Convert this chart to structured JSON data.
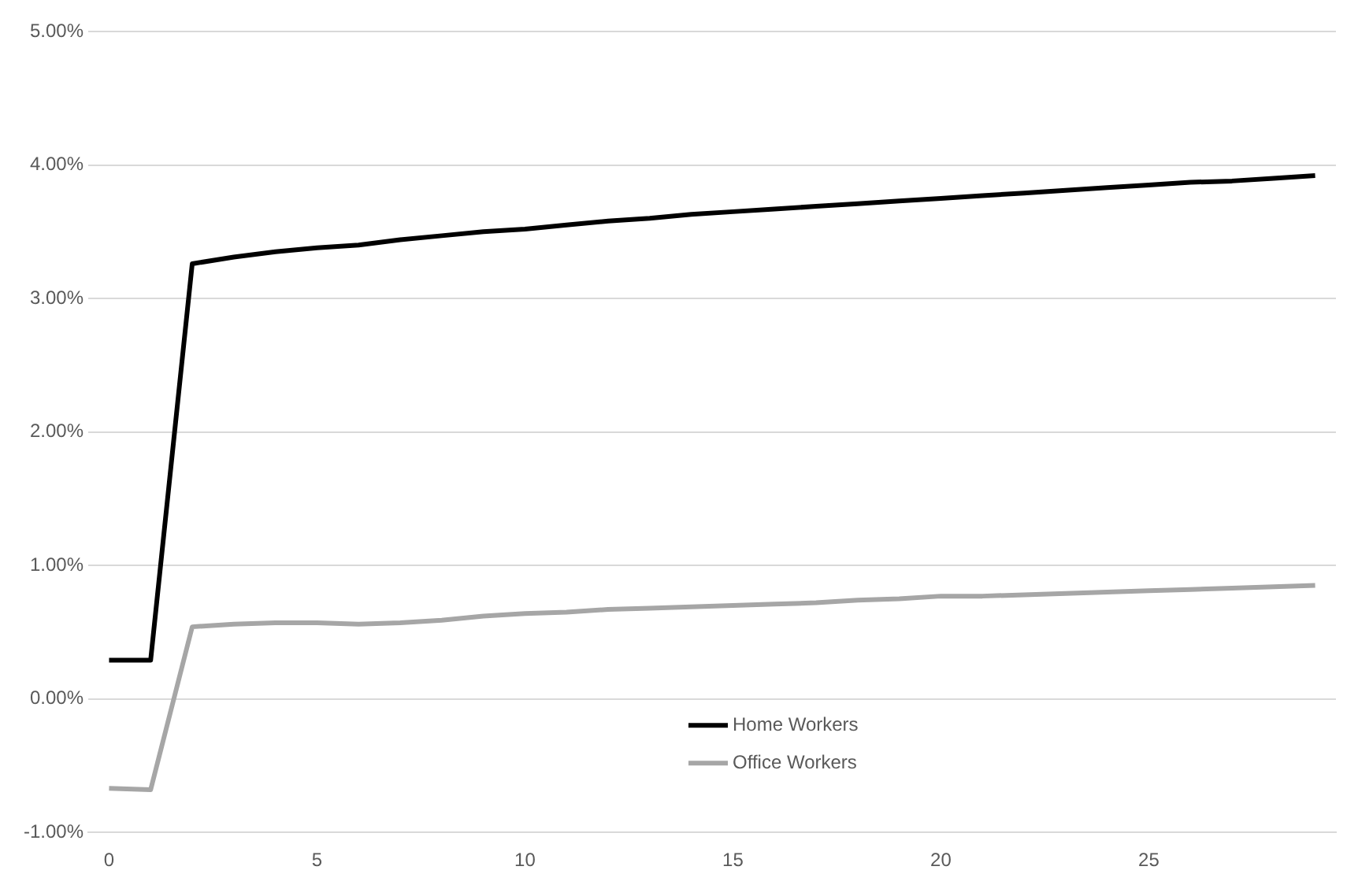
{
  "chart_data": {
    "type": "line",
    "x": [
      0,
      1,
      2,
      3,
      4,
      5,
      6,
      7,
      8,
      9,
      10,
      11,
      12,
      13,
      14,
      15,
      16,
      17,
      18,
      19,
      20,
      21,
      22,
      23,
      24,
      25,
      26,
      27,
      28,
      29
    ],
    "series": [
      {
        "name": "Home Workers",
        "color": "#000000",
        "values": [
          0.29,
          0.29,
          3.26,
          3.31,
          3.35,
          3.38,
          3.4,
          3.44,
          3.47,
          3.5,
          3.52,
          3.55,
          3.58,
          3.6,
          3.63,
          3.65,
          3.67,
          3.69,
          3.71,
          3.73,
          3.75,
          3.77,
          3.79,
          3.81,
          3.83,
          3.85,
          3.87,
          3.88,
          3.9,
          3.92
        ]
      },
      {
        "name": "Office Workers",
        "color": "#a6a6a6",
        "values": [
          -0.67,
          -0.68,
          0.54,
          0.56,
          0.57,
          0.57,
          0.56,
          0.57,
          0.59,
          0.62,
          0.64,
          0.65,
          0.67,
          0.68,
          0.69,
          0.7,
          0.71,
          0.72,
          0.74,
          0.75,
          0.77,
          0.77,
          0.78,
          0.79,
          0.8,
          0.81,
          0.82,
          0.83,
          0.84,
          0.85
        ]
      }
    ],
    "xlim": [
      -0.5,
      29.5
    ],
    "xticks": [
      0,
      5,
      10,
      15,
      20,
      25
    ],
    "ylim": [
      -1,
      5
    ],
    "yticks": [
      {
        "value": -1,
        "label": "-1.00%"
      },
      {
        "value": 0,
        "label": "0.00%"
      },
      {
        "value": 1,
        "label": "1.00%"
      },
      {
        "value": 2,
        "label": "2.00%"
      },
      {
        "value": 3,
        "label": "3.00%"
      },
      {
        "value": 4,
        "label": "4.00%"
      },
      {
        "value": 5,
        "label": "5.00%"
      }
    ],
    "grid": "y",
    "legend": "bottom",
    "marker": "none",
    "line_style": "solid"
  }
}
